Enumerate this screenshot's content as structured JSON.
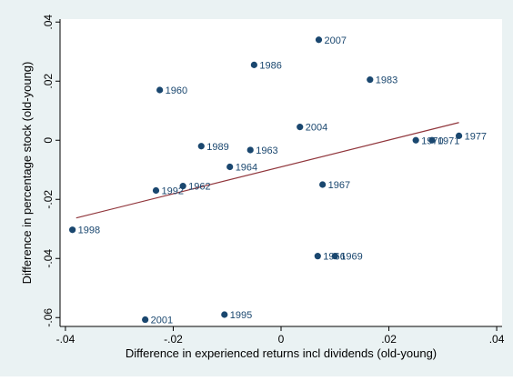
{
  "colors": {
    "outer_background": "#eaf2f3",
    "plot_background": "#ffffff",
    "point": "#1a476f",
    "fit_line": "#90353b",
    "label": "#1a476f",
    "axis": "#000000"
  },
  "chart_data": {
    "type": "scatter",
    "title": "",
    "xlabel": "Difference in experienced returns incl dividends (old-young)",
    "ylabel": "Difference in percentage stock (old-young)",
    "xlim": [
      -0.041,
      0.041
    ],
    "ylim": [
      -0.063,
      0.041
    ],
    "x_ticks": [
      -0.04,
      -0.02,
      0,
      0.02,
      0.04
    ],
    "x_tick_labels": [
      "-.04",
      "-.02",
      "0",
      ".02",
      ".04"
    ],
    "y_ticks": [
      -0.06,
      -0.04,
      -0.02,
      0,
      0.02,
      0.04
    ],
    "y_tick_labels": [
      "-.06",
      "-.04",
      "-.02",
      "0",
      ".02",
      ".04"
    ],
    "grid": false,
    "legend": "none",
    "points": [
      {
        "label": "2007",
        "x": 0.007,
        "y": 0.034
      },
      {
        "label": "1986",
        "x": -0.005,
        "y": 0.0255
      },
      {
        "label": "1983",
        "x": 0.0165,
        "y": 0.0205
      },
      {
        "label": "1960",
        "x": -0.0225,
        "y": 0.017
      },
      {
        "label": "2004",
        "x": 0.0035,
        "y": 0.0045
      },
      {
        "label": "1977",
        "x": 0.033,
        "y": 0.0015
      },
      {
        "label": "1970",
        "x": 0.025,
        "y": 0.0
      },
      {
        "label": "1971",
        "x": 0.028,
        "y": 0.0
      },
      {
        "label": "1989",
        "x": -0.0148,
        "y": -0.002
      },
      {
        "label": "1963",
        "x": -0.0057,
        "y": -0.0033
      },
      {
        "label": "1964",
        "x": -0.0095,
        "y": -0.009
      },
      {
        "label": "1967",
        "x": 0.0077,
        "y": -0.015
      },
      {
        "label": "1962",
        "x": -0.0182,
        "y": -0.0155
      },
      {
        "label": "1992",
        "x": -0.0232,
        "y": -0.017
      },
      {
        "label": "1998",
        "x": -0.0387,
        "y": -0.0303
      },
      {
        "label": "1966",
        "x": 0.0068,
        "y": -0.0392
      },
      {
        "label": "1969",
        "x": 0.01,
        "y": -0.0392
      },
      {
        "label": "1995",
        "x": -0.0105,
        "y": -0.059
      },
      {
        "label": "2001",
        "x": -0.0252,
        "y": -0.0607
      }
    ],
    "fit_line": {
      "x": [
        -0.038,
        0.033
      ],
      "y": [
        -0.0263,
        0.006
      ]
    }
  }
}
